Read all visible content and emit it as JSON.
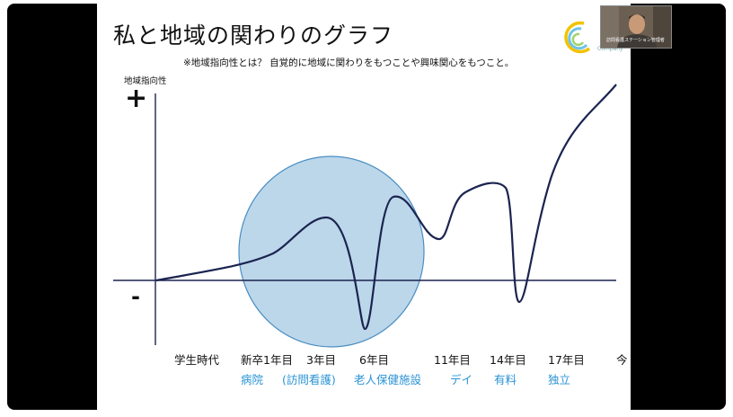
{
  "slide": {
    "title": "私と地域の関わりのグラフ",
    "subtitle": "※地域指向性とは？ 自覚的に地域に関わりをもつことや興味関心をもつこと。",
    "y_axis_label": "地域指向性",
    "plus_sign": "+",
    "minus_sign": "-"
  },
  "x_axis": {
    "labels": [
      "学生時代",
      "新卒1年目",
      "3年目",
      "6年目",
      "11年目",
      "14年目",
      "17年目",
      "今"
    ],
    "sublabels": [
      "病院",
      "(訪問看護)",
      "老人保健施設",
      "デイ",
      "有料",
      "独立"
    ]
  },
  "logo": {
    "company_text": "Company",
    "icon": "ring-logo-icon"
  },
  "video": {
    "participant_label": "訪問看護ステーション管理者"
  },
  "colors": {
    "curve": "#1b2450",
    "axis": "#1b2450",
    "highlight_fill": "#bcd7ea",
    "highlight_stroke": "#4a8ec2",
    "sublabel": "#2a93d5"
  },
  "chart_data": {
    "type": "line",
    "title": "",
    "xlabel": "",
    "ylabel": "地域指向性",
    "categories": [
      "学生時代",
      "新卒1年目",
      "3年目",
      "6年目",
      "11年目",
      "14年目",
      "17年目",
      "今"
    ],
    "series": [
      {
        "values": [
          0,
          0.5,
          1.6,
          -1.3,
          1.1,
          2.4,
          1.0,
          5.0
        ]
      }
    ]
  }
}
